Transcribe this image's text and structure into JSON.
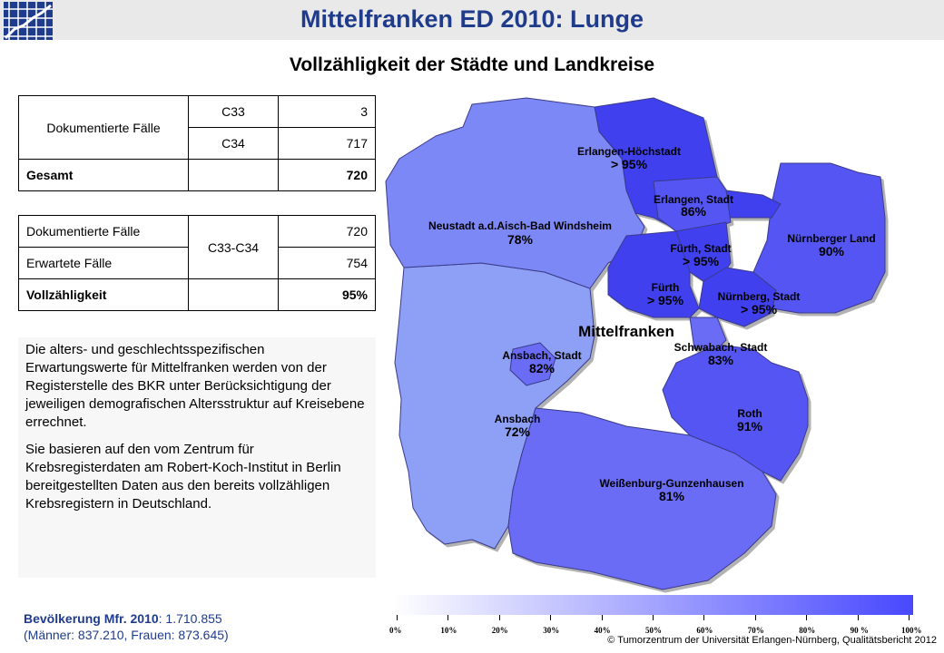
{
  "header": {
    "title": "Mittelfranken ED 2010: Lunge"
  },
  "subtitle": "Vollzähligkeit der Städte und Landkreise",
  "table1": {
    "rows": [
      {
        "label": "Dokumentierte Fälle",
        "code": "C33",
        "value": "3"
      },
      {
        "code": "C34",
        "value": "717"
      },
      {
        "label": "Gesamt",
        "value": "720"
      }
    ]
  },
  "table2": {
    "rows": [
      {
        "label": "Dokumentierte Fälle",
        "code": "C33-C34",
        "value": "720"
      },
      {
        "label": "Erwartete Fälle",
        "value": "754"
      },
      {
        "label": "Vollzähligkeit",
        "value": "95%"
      }
    ]
  },
  "text": {
    "p1": "Die alters- und geschlechtsspezifischen Erwartungswerte für Mittelfranken werden von der Registerstelle des BKR unter Berücksichtigung der jeweiligen demografischen Altersstruktur auf Kreisebene errechnet.",
    "p2": "Sie basieren auf den vom Zentrum für Krebsregisterdaten am Robert-Koch-Institut in Berlin bereitgestellten Daten aus den bereits vollzähligen Krebsregistern in Deutschland."
  },
  "population": {
    "label": "Bevölkerung Mfr. 2010",
    "total": ": 1.710.855",
    "breakdown": "(Männer: 837.210,  Frauen: 873.645)"
  },
  "map": {
    "region_label": "Mittelfranken",
    "colors": {
      "low": "#ffffff",
      "high": "#4848ff",
      "r72": "#8ea0f5",
      "r78": "#7b88f5",
      "r81_83": "#6a6cf5",
      "r86_91": "#5555f3",
      "r95": "#4040ef"
    },
    "regions": [
      {
        "name": "Erlangen-Höchstadt",
        "value": ">  95%"
      },
      {
        "name": "Erlangen, Stadt",
        "value": "86%"
      },
      {
        "name": "Neustadt a.d.Aisch-Bad Windsheim",
        "value": "78%"
      },
      {
        "name": "Fürth, Stadt",
        "value": ">  95%"
      },
      {
        "name": "Nürnberger Land",
        "value": "90%"
      },
      {
        "name": "Fürth",
        "value": ">  95%"
      },
      {
        "name": "Nürnberg, Stadt",
        "value": ">  95%"
      },
      {
        "name": "Ansbach, Stadt",
        "value": "82%"
      },
      {
        "name": "Schwabach, Stadt",
        "value": "83%"
      },
      {
        "name": "Ansbach",
        "value": "72%"
      },
      {
        "name": "Roth",
        "value": "91%"
      },
      {
        "name": "Weißenburg-Gunzenhausen",
        "value": "81%"
      }
    ]
  },
  "legend": {
    "ticks": [
      "0%",
      "10%",
      "20%",
      "30%",
      "40%",
      "50%",
      "60%",
      "70%",
      "80%",
      "90 %",
      "100%"
    ]
  },
  "copyright": "© Tumorzentrum  der Universität Erlangen-Nürnberg,  Qualitätsbericht 2012"
}
